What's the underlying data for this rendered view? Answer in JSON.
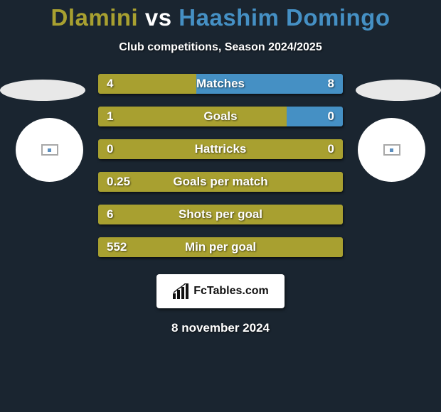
{
  "background_color": "#1a2530",
  "title": {
    "player1_name": "Dlamini",
    "vs": "vs",
    "player2_name": "Haashim Domingo",
    "player1_color": "#a8a030",
    "vs_color": "#ffffff",
    "player2_color": "#4590c4",
    "fontsize": 33
  },
  "subtitle": {
    "text": "Club competitions, Season 2024/2025",
    "color": "#ffffff",
    "fontsize": 16
  },
  "colors": {
    "p1_bar": "#a8a030",
    "p2_bar": "#4590c4",
    "bar_text": "#ffffff",
    "ellipse": "#e8e8e8",
    "circle": "#ffffff"
  },
  "bars": [
    {
      "label": "Matches",
      "left_val": "4",
      "right_val": "8",
      "left_pct": 40,
      "right_pct": 60
    },
    {
      "label": "Goals",
      "left_val": "1",
      "right_val": "0",
      "left_pct": 77,
      "right_pct": 23
    },
    {
      "label": "Hattricks",
      "left_val": "0",
      "right_val": "0",
      "left_pct": 100,
      "right_pct": 0
    },
    {
      "label": "Goals per match",
      "left_val": "0.25",
      "right_val": "",
      "left_pct": 100,
      "right_pct": 0
    },
    {
      "label": "Shots per goal",
      "left_val": "6",
      "right_val": "",
      "left_pct": 100,
      "right_pct": 0
    },
    {
      "label": "Min per goal",
      "left_val": "552",
      "right_val": "",
      "left_pct": 100,
      "right_pct": 0
    }
  ],
  "logo": {
    "text": "FcTables.com"
  },
  "footer_date": "8 november 2024"
}
